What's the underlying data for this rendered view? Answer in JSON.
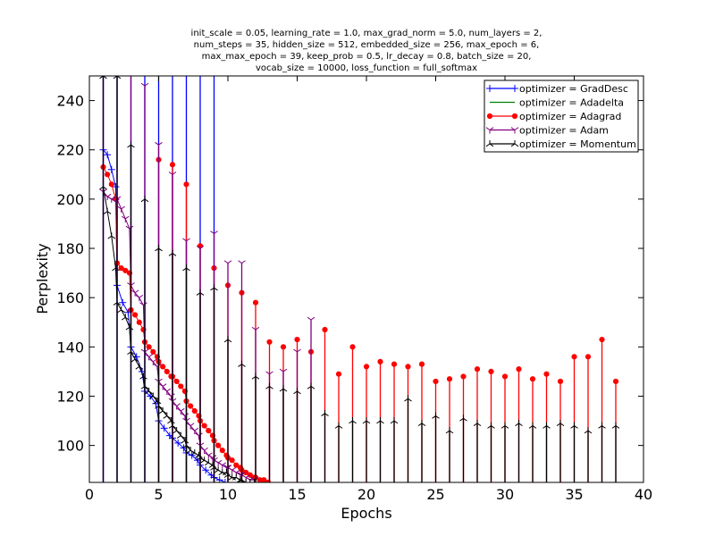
{
  "chart_data": {
    "type": "line",
    "title_lines": [
      "init_scale = 0.05, learning_rate = 1.0, max_grad_norm = 5.0, num_layers = 2,",
      "num_steps = 35, hidden_size = 512, embedded_size = 256, max_epoch = 6,",
      "max_max_epoch = 39, keep_prob = 0.5, lr_decay = 0.8, batch_size = 20,",
      "vocab_size = 10000, loss_function = full_softmax"
    ],
    "xlabel": "Epochs",
    "ylabel": "Perplexity",
    "xlim": [
      0,
      40
    ],
    "ylim": [
      85,
      250
    ],
    "x_ticks": [
      0,
      5,
      10,
      15,
      20,
      25,
      30,
      35,
      40
    ],
    "y_ticks": [
      100,
      120,
      140,
      160,
      180,
      200,
      220,
      240
    ],
    "grid": false,
    "legend_position": "top-right",
    "series": [
      {
        "name": "optimizer = GradDesc",
        "color": "#0000ff",
        "marker": "plus",
        "peaks": [
          [
            1,
            250
          ],
          [
            2,
            250
          ],
          [
            3,
            250
          ],
          [
            4,
            250
          ],
          [
            5,
            250
          ],
          [
            6,
            250
          ],
          [
            7,
            250
          ],
          [
            8,
            250
          ],
          [
            9,
            250
          ]
        ],
        "train": [
          [
            1.0,
            220
          ],
          [
            1.3,
            218
          ],
          [
            1.6,
            212
          ],
          [
            1.9,
            205
          ],
          [
            2.0,
            165
          ],
          [
            2.4,
            158
          ],
          [
            2.8,
            154
          ],
          [
            3.0,
            140
          ],
          [
            3.4,
            136
          ],
          [
            3.8,
            130
          ],
          [
            4.0,
            122
          ],
          [
            4.4,
            120
          ],
          [
            4.8,
            117
          ],
          [
            5.0,
            110
          ],
          [
            5.4,
            107
          ],
          [
            5.8,
            104
          ],
          [
            6.0,
            103
          ],
          [
            6.4,
            101
          ],
          [
            6.8,
            99
          ],
          [
            7.0,
            97
          ],
          [
            7.4,
            96
          ],
          [
            7.8,
            94
          ],
          [
            8.0,
            92
          ],
          [
            8.4,
            90
          ],
          [
            8.8,
            88
          ],
          [
            9.0,
            87
          ],
          [
            9.4,
            86
          ],
          [
            9.8,
            85
          ]
        ]
      },
      {
        "name": "optimizer = Adadelta",
        "color": "#008000",
        "marker": "none",
        "peaks": [],
        "train": []
      },
      {
        "name": "optimizer = Adagrad",
        "color": "#ff0000",
        "marker": "dot",
        "peaks": [
          [
            5,
            216
          ],
          [
            6,
            214
          ],
          [
            7,
            206
          ],
          [
            8,
            181
          ],
          [
            9,
            172
          ],
          [
            10,
            165
          ],
          [
            11,
            162
          ],
          [
            12,
            158
          ],
          [
            13,
            142
          ],
          [
            14,
            140
          ],
          [
            15,
            143
          ],
          [
            16,
            138
          ],
          [
            17,
            147
          ],
          [
            18,
            129
          ],
          [
            19,
            140
          ],
          [
            20,
            132
          ],
          [
            21,
            134
          ],
          [
            22,
            133
          ],
          [
            23,
            132
          ],
          [
            24,
            133
          ],
          [
            25,
            126
          ],
          [
            26,
            127
          ],
          [
            27,
            128
          ],
          [
            28,
            131
          ],
          [
            29,
            130
          ],
          [
            30,
            128
          ],
          [
            31,
            131
          ],
          [
            32,
            127
          ],
          [
            33,
            129
          ],
          [
            34,
            126
          ],
          [
            35,
            136
          ],
          [
            36,
            136
          ],
          [
            37,
            143
          ],
          [
            38,
            126
          ]
        ],
        "train": [
          [
            1.0,
            213
          ],
          [
            1.3,
            210
          ],
          [
            1.6,
            206
          ],
          [
            1.9,
            200
          ],
          [
            2.0,
            174
          ],
          [
            2.3,
            172
          ],
          [
            2.6,
            171
          ],
          [
            2.9,
            170
          ],
          [
            3.0,
            155
          ],
          [
            3.3,
            153
          ],
          [
            3.6,
            150
          ],
          [
            3.9,
            147
          ],
          [
            4.0,
            142
          ],
          [
            4.3,
            140
          ],
          [
            4.6,
            138
          ],
          [
            4.9,
            136
          ],
          [
            5.0,
            134
          ],
          [
            5.3,
            132
          ],
          [
            5.6,
            130
          ],
          [
            5.9,
            128
          ],
          [
            6.0,
            128
          ],
          [
            6.3,
            126
          ],
          [
            6.6,
            124
          ],
          [
            6.9,
            122
          ],
          [
            7.0,
            118
          ],
          [
            7.3,
            116
          ],
          [
            7.6,
            114
          ],
          [
            7.9,
            112
          ],
          [
            8.0,
            110
          ],
          [
            8.3,
            108
          ],
          [
            8.6,
            106
          ],
          [
            8.9,
            104
          ],
          [
            9.0,
            102
          ],
          [
            9.3,
            100
          ],
          [
            9.6,
            98
          ],
          [
            9.9,
            96
          ],
          [
            10.0,
            95
          ],
          [
            10.3,
            94
          ],
          [
            10.6,
            92
          ],
          [
            10.9,
            91
          ],
          [
            11.0,
            90
          ],
          [
            11.3,
            89
          ],
          [
            11.6,
            88
          ],
          [
            11.9,
            87
          ],
          [
            12.0,
            87
          ],
          [
            12.3,
            86
          ],
          [
            12.6,
            86
          ],
          [
            12.9,
            85
          ]
        ]
      },
      {
        "name": "optimizer = Adam",
        "color": "#800080",
        "marker": "tri_down",
        "peaks": [
          [
            1,
            250
          ],
          [
            2,
            250
          ],
          [
            3,
            250
          ],
          [
            4,
            246
          ],
          [
            5,
            222
          ],
          [
            6,
            210
          ],
          [
            7,
            183
          ],
          [
            8,
            180
          ],
          [
            9,
            186
          ],
          [
            10,
            174
          ],
          [
            11,
            174
          ],
          [
            12,
            147
          ],
          [
            13,
            129
          ],
          [
            14,
            130
          ],
          [
            15,
            138
          ],
          [
            16,
            151
          ]
        ],
        "train": [
          [
            1.0,
            203
          ],
          [
            1.3,
            201
          ],
          [
            1.6,
            200
          ],
          [
            1.9,
            199
          ],
          [
            2.0,
            200
          ],
          [
            2.3,
            196
          ],
          [
            2.6,
            192
          ],
          [
            2.9,
            188
          ],
          [
            3.0,
            165
          ],
          [
            3.3,
            162
          ],
          [
            3.6,
            160
          ],
          [
            3.9,
            157
          ],
          [
            4.0,
            138
          ],
          [
            4.3,
            136
          ],
          [
            4.6,
            134
          ],
          [
            4.9,
            132
          ],
          [
            5.0,
            126
          ],
          [
            5.3,
            124
          ],
          [
            5.6,
            122
          ],
          [
            5.9,
            120
          ],
          [
            6.0,
            118
          ],
          [
            6.3,
            116
          ],
          [
            6.6,
            114
          ],
          [
            6.9,
            112
          ],
          [
            7.0,
            110
          ],
          [
            7.3,
            108
          ],
          [
            7.6,
            106
          ],
          [
            7.9,
            104
          ],
          [
            8.0,
            100
          ],
          [
            8.3,
            98
          ],
          [
            8.6,
            96
          ],
          [
            8.9,
            95
          ],
          [
            9.0,
            94
          ],
          [
            9.3,
            93
          ],
          [
            9.6,
            92
          ],
          [
            9.9,
            91
          ],
          [
            10.0,
            91
          ],
          [
            10.3,
            90
          ],
          [
            10.6,
            89
          ],
          [
            10.9,
            88
          ],
          [
            11.0,
            88
          ],
          [
            11.3,
            87
          ],
          [
            11.6,
            86
          ],
          [
            11.9,
            86
          ]
        ]
      },
      {
        "name": "optimizer = Momentum",
        "color": "#000000",
        "marker": "tri_up",
        "peaks": [
          [
            1,
            250
          ],
          [
            2,
            250
          ],
          [
            3,
            222
          ],
          [
            4,
            200
          ],
          [
            5,
            180
          ],
          [
            6,
            178
          ],
          [
            7,
            172
          ],
          [
            8,
            162
          ],
          [
            9,
            164
          ],
          [
            10,
            143
          ],
          [
            11,
            133
          ],
          [
            12,
            128
          ],
          [
            13,
            124
          ],
          [
            14,
            123
          ],
          [
            15,
            122
          ],
          [
            16,
            124
          ],
          [
            17,
            113
          ],
          [
            18,
            108
          ],
          [
            19,
            110
          ],
          [
            20,
            110
          ],
          [
            21,
            110
          ],
          [
            22,
            110
          ],
          [
            23,
            119
          ],
          [
            24,
            109
          ],
          [
            25,
            112
          ],
          [
            26,
            106
          ],
          [
            27,
            111
          ],
          [
            28,
            109
          ],
          [
            29,
            108
          ],
          [
            30,
            108
          ],
          [
            31,
            109
          ],
          [
            32,
            108
          ],
          [
            33,
            108
          ],
          [
            34,
            109
          ],
          [
            35,
            108
          ],
          [
            36,
            106
          ],
          [
            37,
            108
          ],
          [
            38,
            108
          ]
        ],
        "train": [
          [
            1.0,
            205
          ],
          [
            1.3,
            195
          ],
          [
            1.6,
            185
          ],
          [
            1.9,
            172
          ],
          [
            2.0,
            158
          ],
          [
            2.3,
            155
          ],
          [
            2.6,
            152
          ],
          [
            2.9,
            148
          ],
          [
            3.0,
            138
          ],
          [
            3.3,
            135
          ],
          [
            3.6,
            132
          ],
          [
            3.9,
            128
          ],
          [
            4.0,
            124
          ],
          [
            4.3,
            122
          ],
          [
            4.6,
            120
          ],
          [
            4.9,
            118
          ],
          [
            5.0,
            116
          ],
          [
            5.3,
            114
          ],
          [
            5.6,
            112
          ],
          [
            5.9,
            110
          ],
          [
            6.0,
            108
          ],
          [
            6.3,
            106
          ],
          [
            6.6,
            104
          ],
          [
            6.9,
            102
          ],
          [
            7.0,
            100
          ],
          [
            7.3,
            98
          ],
          [
            7.6,
            97
          ],
          [
            7.9,
            96
          ],
          [
            8.0,
            95
          ],
          [
            8.3,
            94
          ],
          [
            8.6,
            93
          ],
          [
            8.9,
            92
          ],
          [
            9.0,
            91
          ],
          [
            9.3,
            90
          ],
          [
            9.6,
            89
          ],
          [
            9.9,
            89
          ],
          [
            10.0,
            88
          ],
          [
            10.3,
            87
          ],
          [
            10.6,
            87
          ],
          [
            10.9,
            86
          ],
          [
            11.0,
            86
          ],
          [
            11.3,
            85
          ],
          [
            11.6,
            85
          ],
          [
            11.9,
            85
          ]
        ]
      }
    ]
  }
}
